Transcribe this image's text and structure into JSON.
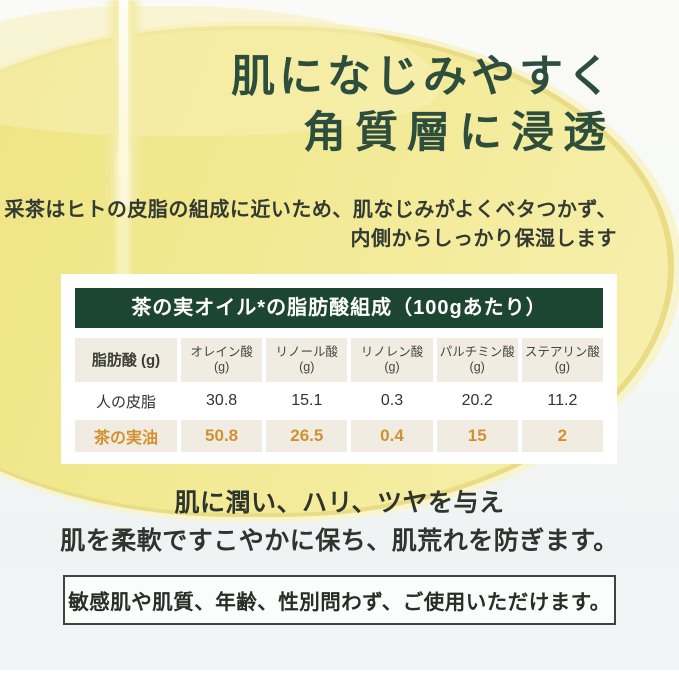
{
  "headline": {
    "line1": "肌になじみやすく",
    "line2": "角質層に浸透"
  },
  "intro": {
    "line1": "采茶はヒトの皮脂の組成に近いため、肌なじみがよくベタつかず、",
    "line2": "内側からしっかり保湿します"
  },
  "table": {
    "caption": "茶の実オイル*の脂肪酸組成（100gあたり）",
    "columns": [
      {
        "name": "脂肪酸 (g)",
        "unit": ""
      },
      {
        "name": "オレイン酸",
        "unit": "(g)"
      },
      {
        "name": "リノール酸",
        "unit": "(g)"
      },
      {
        "name": "リノレン酸",
        "unit": "(g)"
      },
      {
        "name": "パルチミン酸",
        "unit": "(g)"
      },
      {
        "name": "ステアリン酸",
        "unit": "(g)"
      }
    ],
    "rows": [
      {
        "label": "人の皮脂",
        "values": [
          "30.8",
          "15.1",
          "0.3",
          "20.2",
          "11.2"
        ]
      },
      {
        "label": "茶の実油",
        "values": [
          "50.8",
          "26.5",
          "0.4",
          "15",
          "2"
        ]
      }
    ]
  },
  "benefit": {
    "line1": "肌に潤い、ハリ、ツヤを与え",
    "line2": "肌を柔軟ですこやかに保ち、肌荒れを防ぎます。"
  },
  "notice": {
    "text": "敏感肌や肌質、年齢、性別問わず、ご使用いただけます。"
  },
  "colors": {
    "accent_green": "#1d4632",
    "headline_green": "#2d4e3d",
    "accent_orange": "#d2912f",
    "oil_yellow": "#f1e88e",
    "cell_beige": "#f1ece1"
  }
}
